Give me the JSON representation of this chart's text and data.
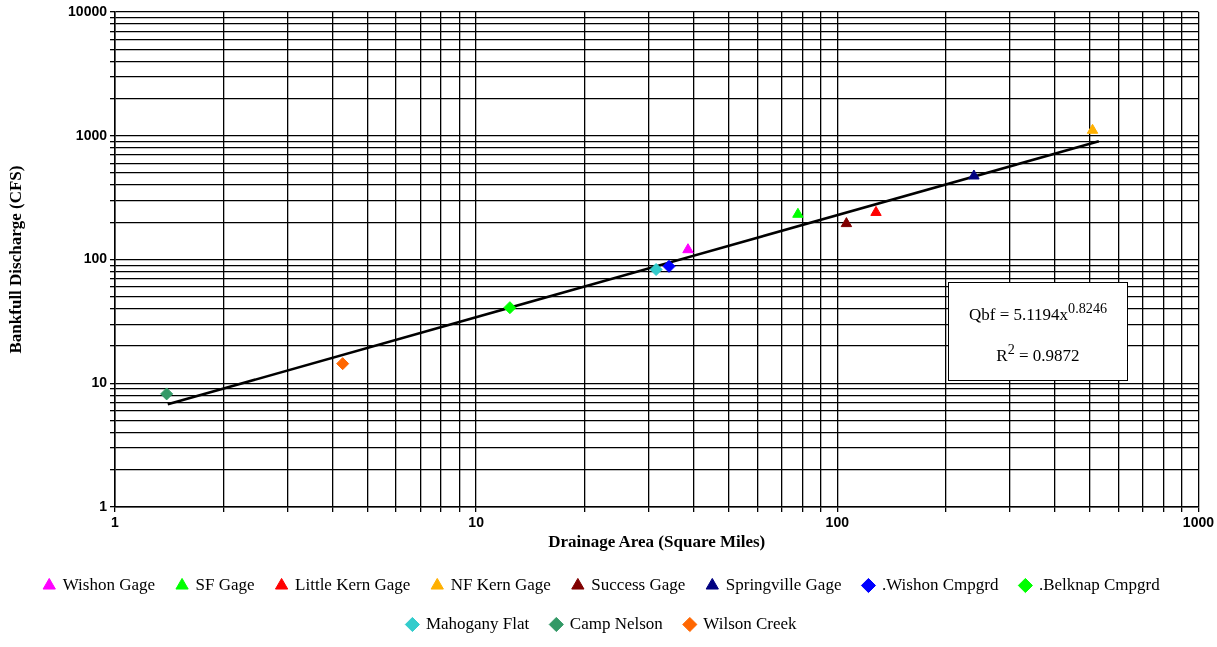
{
  "chart_data": {
    "type": "scatter",
    "xlabel": "Drainage Area (Square Miles)",
    "ylabel": "Bankfull Discharge (CFS)",
    "log": "xy",
    "grid": true,
    "legend": "bottom",
    "xlim": [
      1,
      1000
    ],
    "ylim": [
      1,
      10000
    ],
    "xticks": [
      1,
      {
        "value": 2,
        "label": null
      },
      {
        "value": 3,
        "label": null
      },
      {
        "value": 4,
        "label": null
      },
      {
        "value": 5,
        "label": null
      },
      {
        "value": 6,
        "label": null
      },
      {
        "value": 7,
        "label": null
      },
      {
        "value": 8,
        "label": null
      },
      {
        "value": 9,
        "label": null
      },
      10,
      {
        "value": 20,
        "label": null
      },
      {
        "value": 30,
        "label": null
      },
      {
        "value": 40,
        "label": null
      },
      {
        "value": 50,
        "label": null
      },
      {
        "value": 60,
        "label": null
      },
      {
        "value": 70,
        "label": null
      },
      {
        "value": 80,
        "label": null
      },
      {
        "value": 90,
        "label": null
      },
      100,
      {
        "value": 200,
        "label": null
      },
      {
        "value": 300,
        "label": null
      },
      {
        "value": 400,
        "label": null
      },
      {
        "value": 500,
        "label": null
      },
      {
        "value": 600,
        "label": null
      },
      {
        "value": 700,
        "label": null
      },
      {
        "value": 800,
        "label": null
      },
      {
        "value": 900,
        "label": null
      },
      1000
    ],
    "yticks": [
      1,
      {
        "value": 2,
        "label": null
      },
      {
        "value": 3,
        "label": null
      },
      {
        "value": 4,
        "label": null
      },
      {
        "value": 5,
        "label": null
      },
      {
        "value": 6,
        "label": null
      },
      {
        "value": 7,
        "label": null
      },
      {
        "value": 8,
        "label": null
      },
      {
        "value": 9,
        "label": null
      },
      10,
      {
        "value": 20,
        "label": null
      },
      {
        "value": 30,
        "label": null
      },
      {
        "value": 40,
        "label": null
      },
      {
        "value": 50,
        "label": null
      },
      {
        "value": 60,
        "label": null
      },
      {
        "value": 70,
        "label": null
      },
      {
        "value": 80,
        "label": null
      },
      {
        "value": 90,
        "label": null
      },
      100,
      {
        "value": 200,
        "label": null
      },
      {
        "value": 300,
        "label": null
      },
      {
        "value": 400,
        "label": null
      },
      {
        "value": 500,
        "label": null
      },
      {
        "value": 600,
        "label": null
      },
      {
        "value": 700,
        "label": null
      },
      {
        "value": 800,
        "label": null
      },
      {
        "value": 900,
        "label": null
      },
      1000,
      {
        "value": 2000,
        "label": null
      },
      {
        "value": 3000,
        "label": null
      },
      {
        "value": 4000,
        "label": null
      },
      {
        "value": 5000,
        "label": null
      },
      {
        "value": 6000,
        "label": null
      },
      {
        "value": 7000,
        "label": null
      },
      {
        "value": 8000,
        "label": null
      },
      {
        "value": 9000,
        "label": null
      },
      10000
    ],
    "series": [
      {
        "name": "Wishon Gage",
        "color": "#ff00ff",
        "marker": "triangle",
        "x": [
          38.6
        ],
        "values": [
          120
        ]
      },
      {
        "name": "SF Gage",
        "color": "#00ff00",
        "marker": "triangle",
        "x": [
          77.8
        ],
        "values": [
          232
        ]
      },
      {
        "name": "Little Kern Gage",
        "color": "#ff0000",
        "marker": "triangle",
        "x": [
          128
        ],
        "values": [
          240
        ]
      },
      {
        "name": "NF Kern Gage",
        "color": "#ffb000",
        "marker": "triangle",
        "x": [
          509
        ],
        "values": [
          1107
        ]
      },
      {
        "name": "Success Gage",
        "color": "#800000",
        "marker": "triangle",
        "x": [
          106
        ],
        "values": [
          195
        ]
      },
      {
        "name": "Springville Gage",
        "color": "#000080",
        "marker": "triangle",
        "x": [
          239
        ],
        "values": [
          473
        ]
      },
      {
        "name": ".Wishon Cmpgrd",
        "color": "#0000ff",
        "marker": "diamond",
        "x": [
          34.2
        ],
        "values": [
          88
        ]
      },
      {
        "name": ".Belknap Cmpgrd",
        "color": "#00ff00",
        "marker": "diamond",
        "x": [
          12.4
        ],
        "values": [
          40.8
        ]
      },
      {
        "name": "Mahogany Flat",
        "color": "#33cccc",
        "marker": "diamond",
        "x": [
          31.5
        ],
        "values": [
          83
        ]
      },
      {
        "name": "Camp Nelson",
        "color": "#339966",
        "marker": "diamond",
        "x": [
          1.39
        ],
        "values": [
          8.2
        ]
      },
      {
        "name": "Wilson Creek",
        "color": "#ff6600",
        "marker": "diamond",
        "x": [
          4.27
        ],
        "values": [
          14.4
        ]
      },
      {
        "type": "line",
        "color": "#000000",
        "marker": "none",
        "x": [
          1.4,
          530
        ],
        "values": [
          6.76,
          903
        ]
      }
    ],
    "annotations": [
      "Qbf = 5.1194x$^{0.8246}$",
      "R$^{2}$ = 0.9872"
    ]
  }
}
